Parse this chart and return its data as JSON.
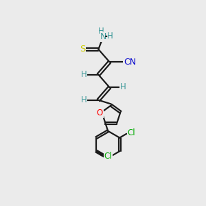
{
  "bg_color": "#ebebeb",
  "line_color": "#1a1a1a",
  "bond_width": 1.6,
  "colors": {
    "N": "#3d9999",
    "H": "#3d9999",
    "S": "#cccc00",
    "CN": "#0000cc",
    "O": "#ff0000",
    "Cl": "#00aa00",
    "default": "#1a1a1a"
  },
  "layout": {
    "figsize": [
      3.0,
      3.0
    ],
    "dpi": 100,
    "xlim": [
      0,
      10
    ],
    "ylim": [
      0,
      10
    ]
  }
}
